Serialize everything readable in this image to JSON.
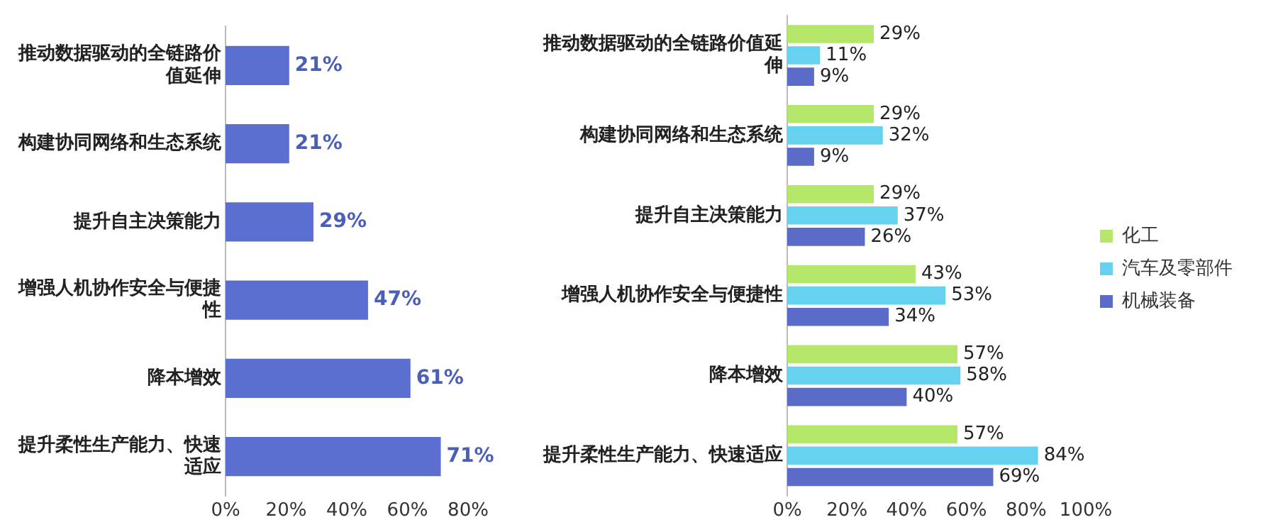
{
  "chart_data": [
    {
      "type": "bar",
      "orientation": "horizontal",
      "categories": [
        "推动数据驱动的全链路价值延伸",
        "构建协同网络和生态系统",
        "提升自主决策能力",
        "增强人机协作安全与便捷性",
        "降本增效",
        "提升柔性生产能力、快速适应"
      ],
      "values": [
        21,
        21,
        29,
        47,
        61,
        71
      ],
      "color": "#5a6fd0",
      "value_labels": [
        "21%",
        "21%",
        "29%",
        "47%",
        "61%",
        "71%"
      ],
      "xlim": [
        0,
        80
      ],
      "xticks": [
        {
          "value": 0,
          "label": "0%"
        },
        {
          "value": 20,
          "label": "20%"
        },
        {
          "value": 40,
          "label": "40%"
        },
        {
          "value": 60,
          "label": "60%"
        },
        {
          "value": 80,
          "label": "80%"
        }
      ],
      "grid": false,
      "legend": false
    },
    {
      "type": "bar",
      "orientation": "horizontal",
      "categories": [
        "推动数据驱动的全链路价值延伸",
        "构建协同网络和生态系统",
        "提升自主决策能力",
        "增强人机协作安全与便捷性",
        "降本增效",
        "提升柔性生产能力、快速适应"
      ],
      "series": [
        {
          "name": "化工",
          "color": "#b5e86a",
          "values": [
            29,
            29,
            29,
            43,
            57,
            57
          ],
          "value_labels": [
            "29%",
            "29%",
            "29%",
            "43%",
            "57%",
            "57%"
          ]
        },
        {
          "name": "汽车及零部件",
          "color": "#66d2f0",
          "values": [
            11,
            32,
            37,
            53,
            58,
            84
          ],
          "value_labels": [
            "11%",
            "32%",
            "37%",
            "53%",
            "58%",
            "84%"
          ]
        },
        {
          "name": "机械装备",
          "color": "#5b6bc8",
          "values": [
            9,
            9,
            26,
            34,
            40,
            69
          ],
          "value_labels": [
            "9%",
            "9%",
            "26%",
            "34%",
            "40%",
            "69%"
          ]
        }
      ],
      "xlim": [
        0,
        100
      ],
      "xticks": [
        {
          "value": 0,
          "label": "0%"
        },
        {
          "value": 20,
          "label": "20%"
        },
        {
          "value": 40,
          "label": "40%"
        },
        {
          "value": 60,
          "label": "60%"
        },
        {
          "value": 80,
          "label": "80%"
        },
        {
          "value": 100,
          "label": "100%"
        }
      ],
      "grid": false,
      "legend": "right"
    }
  ]
}
